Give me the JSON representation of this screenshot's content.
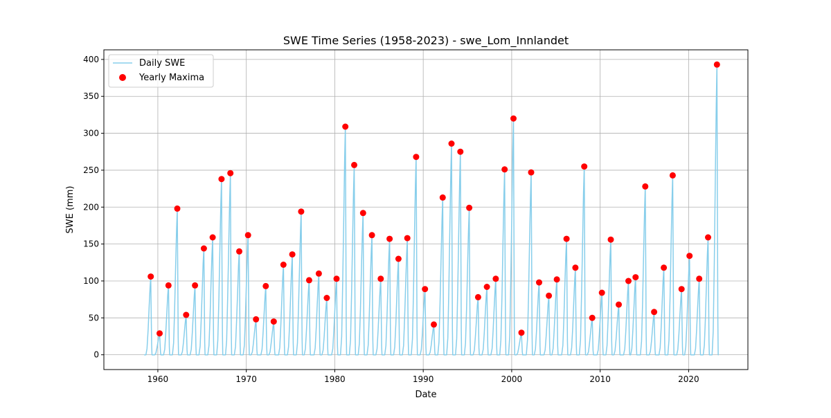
{
  "chart_data": {
    "type": "line",
    "title": "SWE Time Series (1958-2023) - swe_Lom_Innlandet",
    "xlabel": "Date",
    "ylabel": "SWE (mm)",
    "xlim": [
      1953.9,
      2026.7
    ],
    "ylim": [
      -20,
      413
    ],
    "x_ticks": [
      1960,
      1970,
      1980,
      1990,
      2000,
      2010,
      2020
    ],
    "y_ticks": [
      0,
      50,
      100,
      150,
      200,
      250,
      300,
      350,
      400
    ],
    "grid": true,
    "legend": {
      "position": "top-left"
    },
    "colors": {
      "daily_swe": "#87ceeb",
      "yearly_maxima": "#ff0000",
      "grid": "#b0b0b0"
    },
    "series": [
      {
        "name": "Daily SWE",
        "kind": "line",
        "description_of_values": "daily snow water equivalent; seasonal peaks equal the yearly maxima, zero in summer"
      },
      {
        "name": "Yearly Maxima",
        "kind": "scatter",
        "x": [
          1959.2,
          1960.2,
          1961.2,
          1962.2,
          1963.2,
          1964.2,
          1965.2,
          1966.2,
          1967.2,
          1968.2,
          1969.2,
          1970.2,
          1971.1,
          1972.2,
          1973.1,
          1974.2,
          1975.2,
          1976.2,
          1977.1,
          1978.2,
          1979.1,
          1980.2,
          1981.2,
          1982.2,
          1983.2,
          1984.2,
          1985.2,
          1986.2,
          1987.2,
          1988.2,
          1989.2,
          1990.2,
          1991.2,
          1992.2,
          1993.2,
          1994.2,
          1995.2,
          1996.2,
          1997.2,
          1998.2,
          1999.2,
          2000.2,
          2001.1,
          2002.2,
          2003.1,
          2004.2,
          2005.1,
          2006.2,
          2007.2,
          2008.2,
          2009.1,
          2010.2,
          2011.2,
          2012.1,
          2013.2,
          2014.0,
          2015.1,
          2016.1,
          2017.2,
          2018.2,
          2019.2,
          2020.1,
          2021.2,
          2022.2,
          2023.2
        ],
        "y": [
          106,
          29,
          94,
          198,
          54,
          94,
          144,
          159,
          238,
          246,
          140,
          162,
          48,
          93,
          45,
          122,
          136,
          194,
          101,
          110,
          77,
          103,
          309,
          257,
          192,
          162,
          103,
          157,
          130,
          158,
          268,
          89,
          41,
          213,
          286,
          275,
          199,
          78,
          92,
          103,
          251,
          320,
          30,
          247,
          98,
          80,
          102,
          157,
          118,
          255,
          50,
          84,
          156,
          68,
          100,
          105,
          228,
          58,
          118,
          243,
          89,
          134,
          103,
          159,
          393
        ]
      }
    ]
  }
}
